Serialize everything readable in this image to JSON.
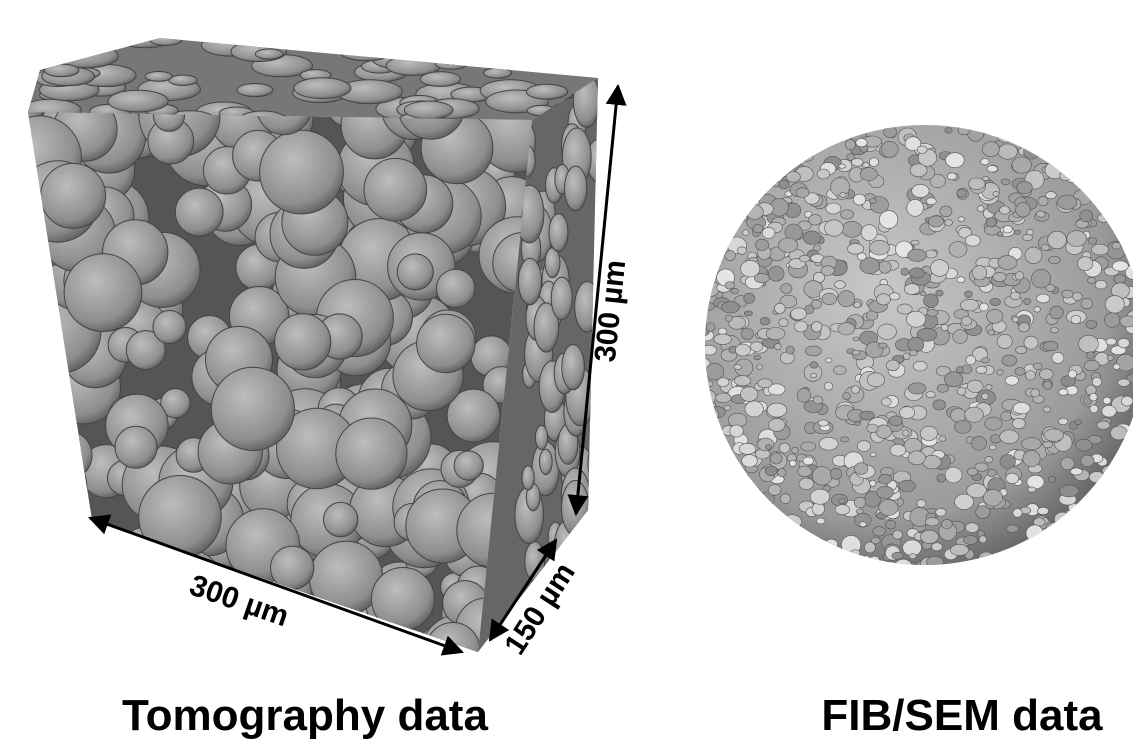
{
  "panels": [
    {
      "caption": "Tomography data",
      "dimensions": [
        "300 µm",
        "300 µm",
        "150 µm"
      ]
    },
    {
      "caption": "FIB/SEM data"
    }
  ]
}
